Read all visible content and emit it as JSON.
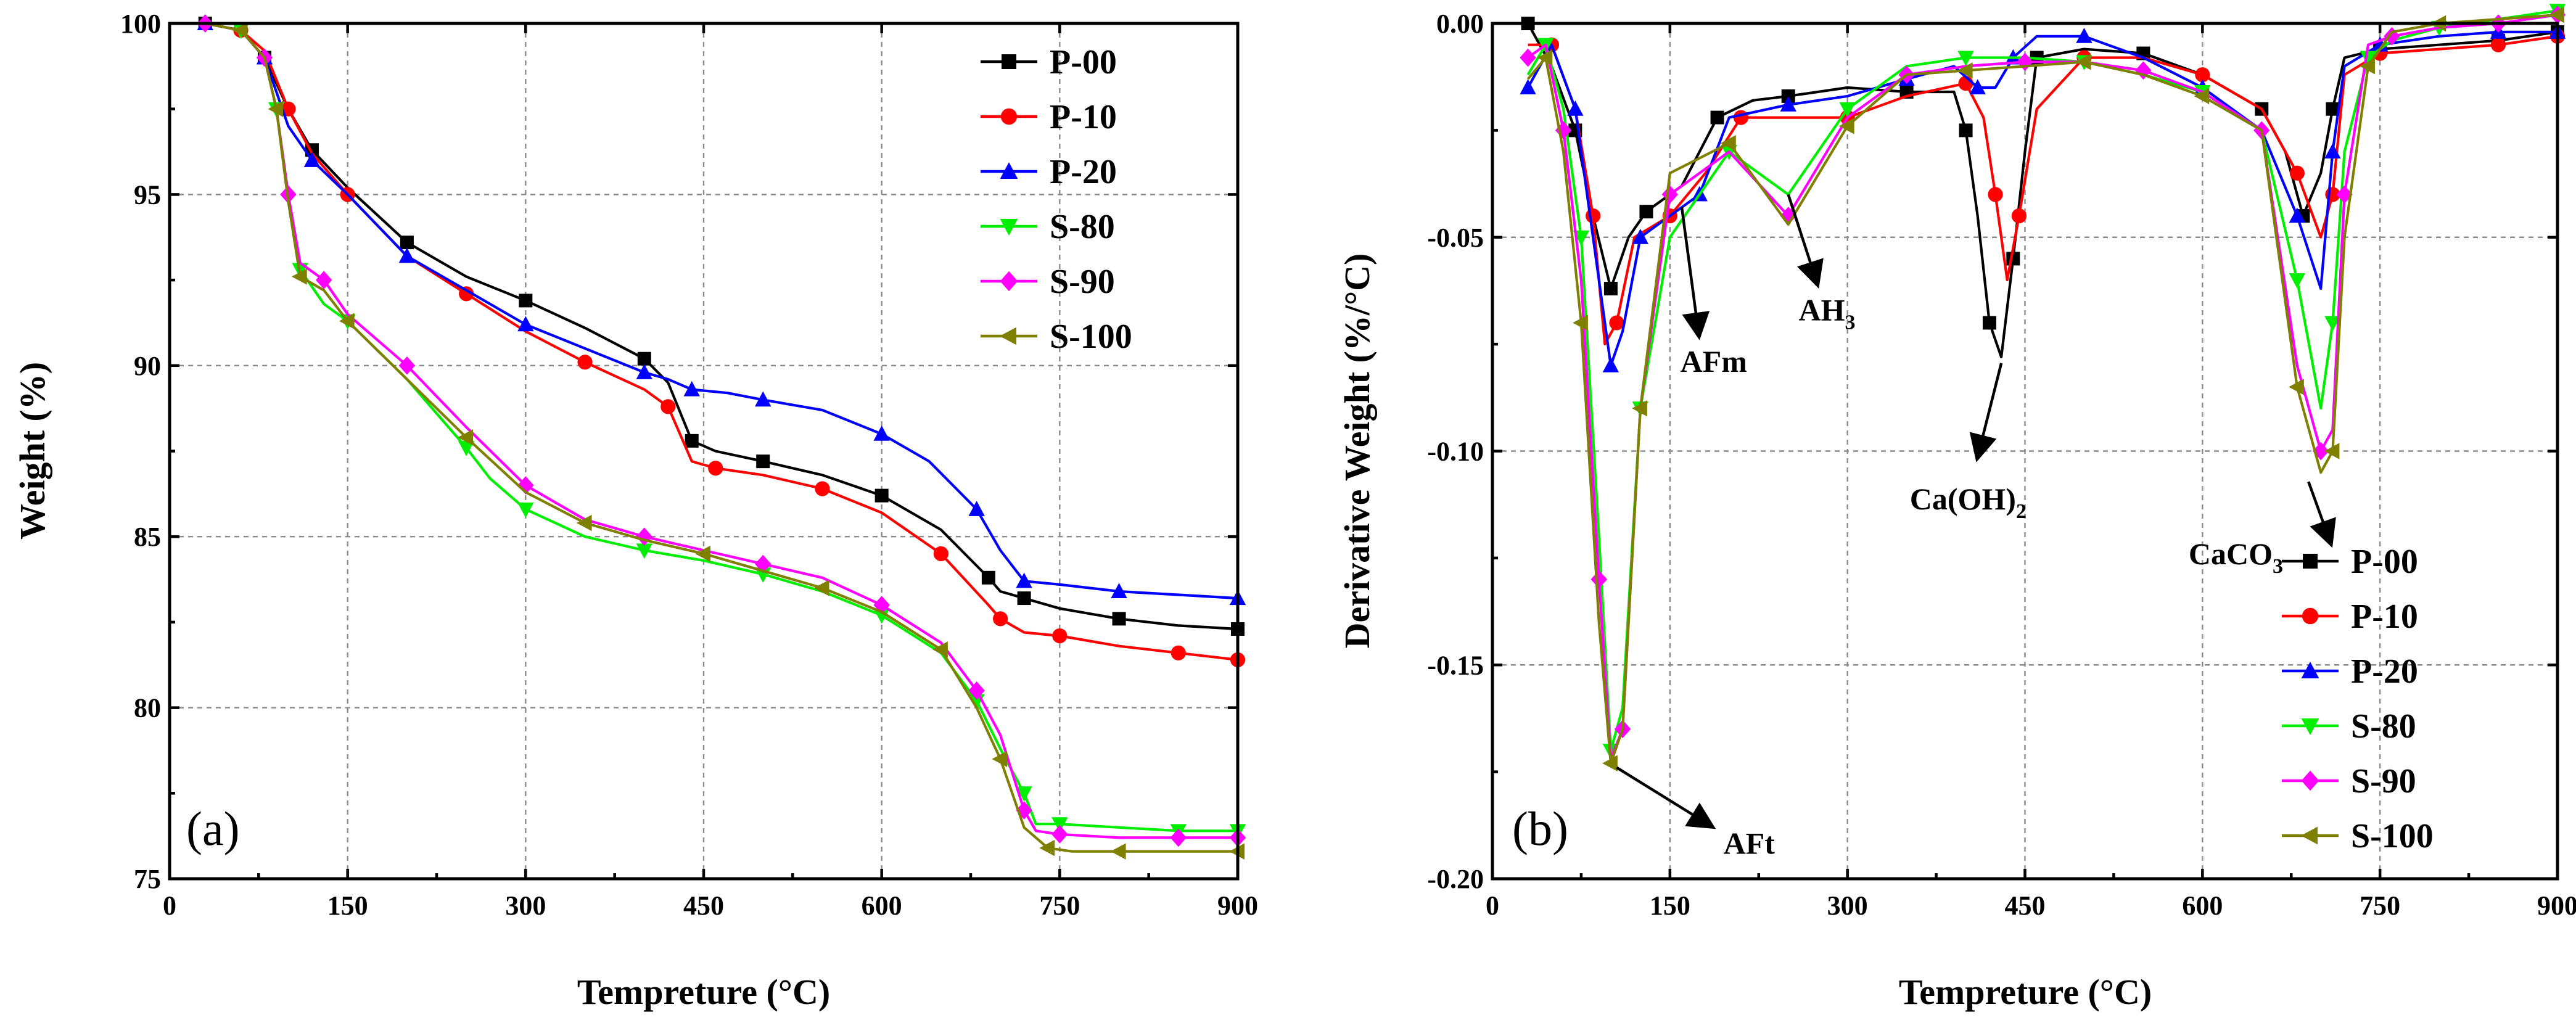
{
  "chart_data": [
    {
      "type": "line",
      "panel_label": "(a)",
      "xlabel": "Tempreture (°C)",
      "ylabel": "Weight (%)",
      "xlim": [
        0,
        900
      ],
      "ylim": [
        75,
        100
      ],
      "xticks": [
        0,
        150,
        300,
        450,
        600,
        750,
        900
      ],
      "xtick_labels": [
        "0",
        "150",
        "300",
        "450",
        "600",
        "750",
        "900"
      ],
      "yticks": [
        75,
        80,
        85,
        90,
        95,
        100
      ],
      "ytick_labels": [
        "75",
        "80",
        "85",
        "90",
        "95",
        "100"
      ],
      "grid": true,
      "legend_position": "top-right",
      "series": [
        {
          "name": "P-00",
          "color": "#000000",
          "marker": "square",
          "x": [
            30,
            60,
            80,
            100,
            120,
            150,
            200,
            250,
            300,
            350,
            400,
            420,
            440,
            460,
            500,
            550,
            600,
            650,
            690,
            700,
            720,
            750,
            800,
            850,
            900
          ],
          "y": [
            100,
            99.8,
            99,
            97.5,
            96.3,
            95.2,
            93.6,
            92.6,
            91.9,
            91.1,
            90.2,
            89.5,
            87.8,
            87.5,
            87.2,
            86.8,
            86.2,
            85.2,
            83.8,
            83.4,
            83.2,
            82.9,
            82.6,
            82.4,
            82.3
          ]
        },
        {
          "name": "P-10",
          "color": "#ff0000",
          "marker": "circle",
          "x": [
            30,
            60,
            80,
            100,
            120,
            150,
            200,
            250,
            300,
            350,
            400,
            420,
            440,
            460,
            500,
            550,
            600,
            650,
            690,
            700,
            720,
            750,
            800,
            850,
            900
          ],
          "y": [
            100,
            99.8,
            99.2,
            97.5,
            96.2,
            95,
            93.2,
            92.1,
            91,
            90.1,
            89.3,
            88.8,
            87.2,
            87,
            86.8,
            86.4,
            85.7,
            84.5,
            83,
            82.6,
            82.2,
            82.1,
            81.8,
            81.6,
            81.4
          ]
        },
        {
          "name": "P-20",
          "color": "#0000ff",
          "marker": "triangle-up",
          "x": [
            30,
            60,
            80,
            100,
            120,
            150,
            200,
            250,
            300,
            350,
            400,
            420,
            440,
            470,
            500,
            550,
            600,
            640,
            680,
            700,
            720,
            750,
            800,
            850,
            900
          ],
          "y": [
            100,
            99.8,
            99,
            97,
            96,
            95,
            93.2,
            92.2,
            91.2,
            90.5,
            89.8,
            89.6,
            89.3,
            89.2,
            89,
            88.7,
            88,
            87.2,
            85.8,
            84.6,
            83.7,
            83.6,
            83.4,
            83.3,
            83.2
          ]
        },
        {
          "name": "S-80",
          "color": "#00ee00",
          "marker": "triangle-down",
          "x": [
            30,
            60,
            80,
            90,
            100,
            110,
            130,
            150,
            200,
            250,
            270,
            300,
            350,
            400,
            450,
            500,
            550,
            600,
            650,
            680,
            700,
            720,
            730,
            750,
            800,
            850,
            900
          ],
          "y": [
            100,
            99.8,
            99,
            97.5,
            95,
            92.8,
            91.8,
            91.3,
            89.6,
            87.6,
            86.7,
            85.8,
            85,
            84.6,
            84.3,
            83.9,
            83.4,
            82.7,
            81.6,
            80.2,
            78.8,
            77.5,
            76.6,
            76.6,
            76.5,
            76.4,
            76.4
          ]
        },
        {
          "name": "S-90",
          "color": "#ff00ff",
          "marker": "diamond",
          "x": [
            30,
            60,
            80,
            90,
            100,
            110,
            130,
            150,
            200,
            250,
            300,
            350,
            400,
            450,
            500,
            550,
            600,
            650,
            680,
            700,
            720,
            730,
            750,
            800,
            850,
            900
          ],
          "y": [
            100,
            99.8,
            99,
            97.5,
            95,
            93,
            92.5,
            91.5,
            90,
            88.2,
            86.5,
            85.5,
            85,
            84.6,
            84.2,
            83.8,
            83,
            81.9,
            80.5,
            79.2,
            77,
            76.4,
            76.3,
            76.2,
            76.2,
            76.2
          ]
        },
        {
          "name": "S-100",
          "color": "#808000",
          "marker": "triangle-left",
          "x": [
            30,
            60,
            80,
            90,
            100,
            110,
            130,
            150,
            200,
            250,
            300,
            350,
            400,
            450,
            500,
            550,
            600,
            650,
            680,
            700,
            720,
            740,
            760,
            800,
            850,
            900
          ],
          "y": [
            100,
            99.8,
            99,
            97.5,
            94.8,
            92.6,
            92.2,
            91.3,
            89.6,
            87.9,
            86.3,
            85.4,
            84.9,
            84.5,
            84,
            83.5,
            82.8,
            81.7,
            80,
            78.5,
            76.5,
            75.9,
            75.8,
            75.8,
            75.8,
            75.8
          ]
        }
      ]
    },
    {
      "type": "line",
      "panel_label": "(b)",
      "xlabel": "Tempreture (°C)",
      "ylabel": "Derivative Weight (%/°C)",
      "xlim": [
        0,
        900
      ],
      "ylim": [
        -0.2,
        0
      ],
      "xticks": [
        0,
        150,
        300,
        450,
        600,
        750,
        900
      ],
      "xtick_labels": [
        "0",
        "150",
        "300",
        "450",
        "600",
        "750",
        "900"
      ],
      "yticks": [
        -0.2,
        -0.15,
        -0.1,
        -0.05,
        0
      ],
      "ytick_labels": [
        "-0.20",
        "-0.15",
        "-0.10",
        "-0.05",
        "0.00"
      ],
      "grid": true,
      "legend_position": "bottom-right",
      "series": [
        {
          "name": "P-00",
          "color": "#000000",
          "marker": "square",
          "x": [
            30,
            50,
            70,
            85,
            100,
            115,
            130,
            160,
            190,
            220,
            250,
            300,
            350,
            390,
            400,
            410,
            420,
            430,
            440,
            450,
            460,
            500,
            550,
            600,
            650,
            670,
            685,
            700,
            710,
            720,
            750,
            800,
            850,
            900
          ],
          "y": [
            0,
            -0.01,
            -0.025,
            -0.045,
            -0.062,
            -0.05,
            -0.044,
            -0.038,
            -0.022,
            -0.018,
            -0.017,
            -0.015,
            -0.016,
            -0.016,
            -0.025,
            -0.045,
            -0.07,
            -0.078,
            -0.055,
            -0.03,
            -0.008,
            -0.006,
            -0.007,
            -0.012,
            -0.02,
            -0.03,
            -0.045,
            -0.035,
            -0.02,
            -0.008,
            -0.006,
            -0.005,
            -0.004,
            -0.002
          ]
        },
        {
          "name": "P-10",
          "color": "#ff0000",
          "marker": "circle",
          "x": [
            30,
            50,
            70,
            85,
            95,
            105,
            120,
            150,
            180,
            210,
            250,
            300,
            350,
            400,
            415,
            425,
            435,
            445,
            460,
            500,
            550,
            600,
            650,
            680,
            700,
            710,
            720,
            750,
            800,
            850,
            900
          ],
          "y": [
            -0.005,
            -0.005,
            -0.02,
            -0.045,
            -0.075,
            -0.07,
            -0.05,
            -0.045,
            -0.035,
            -0.022,
            -0.022,
            -0.022,
            -0.017,
            -0.014,
            -0.022,
            -0.04,
            -0.06,
            -0.045,
            -0.02,
            -0.008,
            -0.008,
            -0.012,
            -0.02,
            -0.035,
            -0.05,
            -0.04,
            -0.012,
            -0.007,
            -0.006,
            -0.005,
            -0.003
          ]
        },
        {
          "name": "P-20",
          "color": "#0000ff",
          "marker": "triangle-up",
          "x": [
            30,
            50,
            70,
            85,
            100,
            110,
            125,
            150,
            175,
            200,
            250,
            300,
            350,
            390,
            410,
            425,
            440,
            460,
            500,
            550,
            600,
            650,
            680,
            700,
            710,
            720,
            750,
            800,
            850,
            900
          ],
          "y": [
            -0.015,
            -0.005,
            -0.02,
            -0.05,
            -0.08,
            -0.072,
            -0.05,
            -0.045,
            -0.04,
            -0.022,
            -0.019,
            -0.017,
            -0.013,
            -0.01,
            -0.015,
            -0.015,
            -0.008,
            -0.003,
            -0.003,
            -0.008,
            -0.015,
            -0.025,
            -0.045,
            -0.062,
            -0.03,
            -0.01,
            -0.005,
            -0.003,
            -0.002,
            -0.002
          ]
        },
        {
          "name": "S-80",
          "color": "#00ee00",
          "marker": "triangle-down",
          "x": [
            30,
            45,
            60,
            75,
            90,
            100,
            110,
            125,
            150,
            200,
            250,
            300,
            350,
            400,
            450,
            500,
            550,
            600,
            650,
            680,
            700,
            710,
            720,
            740,
            760,
            800,
            850,
            900
          ],
          "y": [
            -0.012,
            -0.005,
            -0.02,
            -0.05,
            -0.12,
            -0.17,
            -0.16,
            -0.09,
            -0.05,
            -0.03,
            -0.04,
            -0.02,
            -0.01,
            -0.008,
            -0.008,
            -0.009,
            -0.012,
            -0.016,
            -0.025,
            -0.06,
            -0.09,
            -0.07,
            -0.03,
            -0.008,
            -0.004,
            -0.001,
            0.001,
            0.003
          ]
        },
        {
          "name": "S-90",
          "color": "#ff00ff",
          "marker": "diamond",
          "x": [
            30,
            45,
            60,
            75,
            90,
            100,
            110,
            125,
            150,
            200,
            250,
            300,
            350,
            400,
            450,
            500,
            550,
            600,
            650,
            680,
            700,
            710,
            720,
            740,
            760,
            800,
            850,
            900
          ],
          "y": [
            -0.008,
            -0.005,
            -0.025,
            -0.06,
            -0.13,
            -0.172,
            -0.165,
            -0.09,
            -0.04,
            -0.03,
            -0.045,
            -0.022,
            -0.012,
            -0.01,
            -0.009,
            -0.009,
            -0.011,
            -0.016,
            -0.025,
            -0.08,
            -0.1,
            -0.095,
            -0.04,
            -0.005,
            -0.003,
            -0.001,
            0,
            0.002
          ]
        },
        {
          "name": "S-100",
          "color": "#808000",
          "marker": "triangle-left",
          "x": [
            30,
            45,
            60,
            75,
            90,
            100,
            110,
            125,
            150,
            200,
            250,
            300,
            350,
            400,
            450,
            500,
            550,
            600,
            650,
            680,
            700,
            710,
            720,
            740,
            760,
            800,
            850,
            900
          ],
          "y": [
            -0.013,
            -0.008,
            -0.03,
            -0.07,
            -0.14,
            -0.173,
            -0.165,
            -0.09,
            -0.035,
            -0.028,
            -0.047,
            -0.024,
            -0.012,
            -0.011,
            -0.01,
            -0.009,
            -0.012,
            -0.017,
            -0.025,
            -0.085,
            -0.105,
            -0.1,
            -0.05,
            -0.01,
            -0.002,
            0,
            0.001,
            0.002
          ]
        }
      ],
      "annotations": [
        {
          "name": "AFm",
          "text": "AFm",
          "sub": "",
          "x": 160,
          "y": -0.043,
          "tx": 190,
          "ty": -0.08
        },
        {
          "name": "AH3",
          "text": "AH",
          "sub": "3",
          "x": 250,
          "y": -0.04,
          "tx": 290,
          "ty": -0.068
        },
        {
          "name": "CaOH2",
          "text": "Ca(OH)",
          "sub": "2",
          "x": 430,
          "y": -0.078,
          "tx": 410,
          "ty": -0.11
        },
        {
          "name": "CaCO3",
          "text": "CaCO",
          "sub": "3",
          "x": 700,
          "y": -0.106,
          "tx": 630,
          "ty": -0.125
        },
        {
          "name": "AFt",
          "text": "AFt",
          "sub": "",
          "x": 105,
          "y": -0.174,
          "tx": 190,
          "ty": -0.192
        }
      ]
    }
  ]
}
